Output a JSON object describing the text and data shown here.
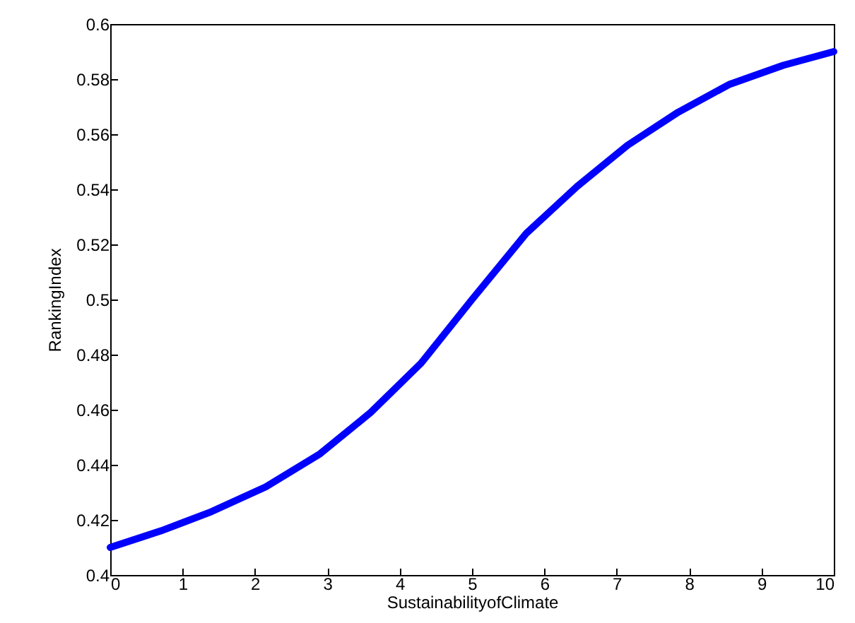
{
  "chart_data": {
    "type": "line",
    "xlabel": "SustainabilityofClimate",
    "ylabel": "RankingIndex",
    "x": [
      0,
      0.7,
      1.4,
      2.15,
      2.9,
      3.6,
      4.3,
      5,
      5.75,
      6.45,
      7.15,
      7.85,
      8.55,
      9.3,
      10
    ],
    "series": [
      {
        "color": "#0000ff",
        "values": [
          0.41,
          0.416,
          0.423,
          0.432,
          0.444,
          0.459,
          0.477,
          0.5,
          0.524,
          0.541,
          0.556,
          0.568,
          0.578,
          0.585,
          0.59
        ]
      }
    ],
    "xlim": [
      0,
      10
    ],
    "xticks": [
      0,
      1,
      2,
      3,
      4,
      5,
      6,
      7,
      8,
      9,
      10
    ],
    "ylim": [
      0.4,
      0.6
    ],
    "yticks": [
      0.4,
      0.42,
      0.44,
      0.46,
      0.48,
      0.5,
      0.52,
      0.54,
      0.56,
      0.58,
      0.6
    ],
    "grid": false,
    "marker": "none",
    "line_style": "solid"
  }
}
